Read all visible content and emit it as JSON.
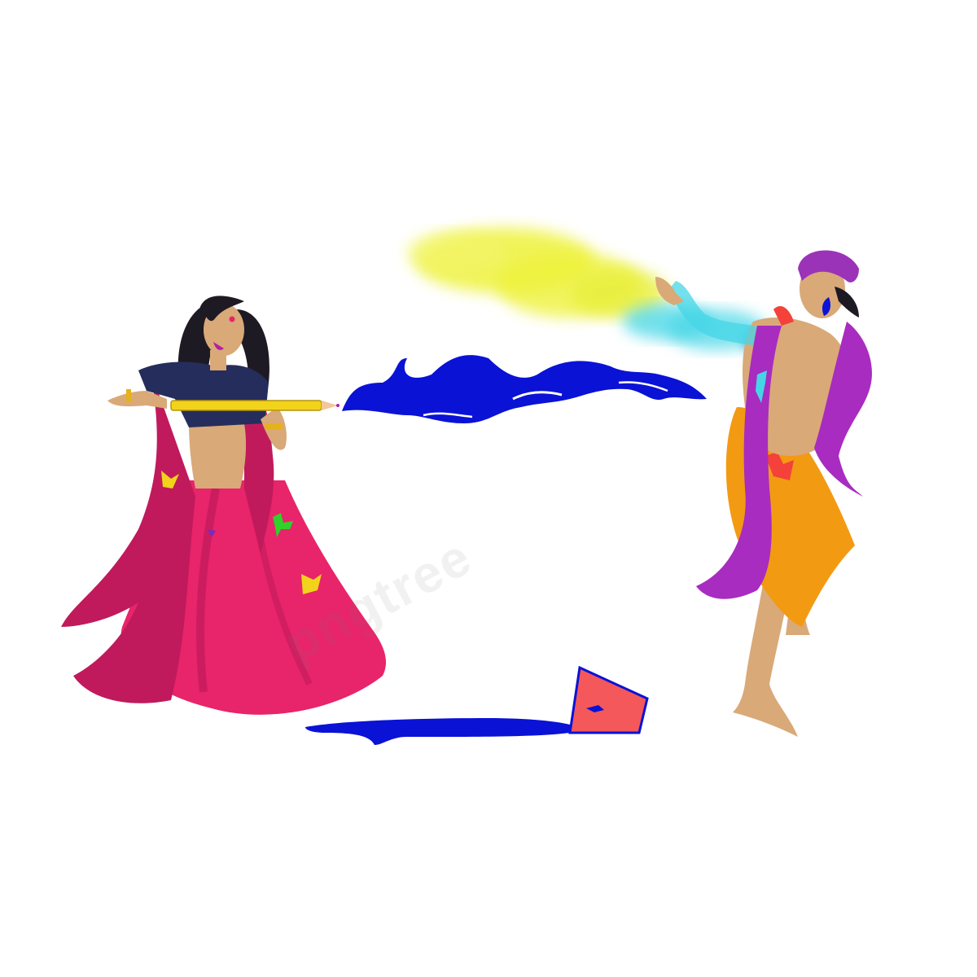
{
  "scene": {
    "watermark_text": "pngtree",
    "colors": {
      "background": "#ffffff",
      "skin": "#d9a978",
      "woman_hair": "#1e1a24",
      "woman_blouse": "#252d5c",
      "woman_skirt": "#e8246a",
      "woman_dupatta": "#c01a5c",
      "water_gun": "#f2d31b",
      "water_blue": "#0a12d6",
      "man_turban": "#9b33b8",
      "man_dhoti": "#f39a13",
      "man_scarf": "#a82cc0",
      "powder_yellow": "#eef23a",
      "powder_cyan": "#45d6e6",
      "bucket": "#f4585a"
    },
    "elements": [
      "woman-figure",
      "water-gun",
      "water-stream",
      "color-powder-cloud",
      "man-figure",
      "color-bucket",
      "spilled-color"
    ]
  }
}
